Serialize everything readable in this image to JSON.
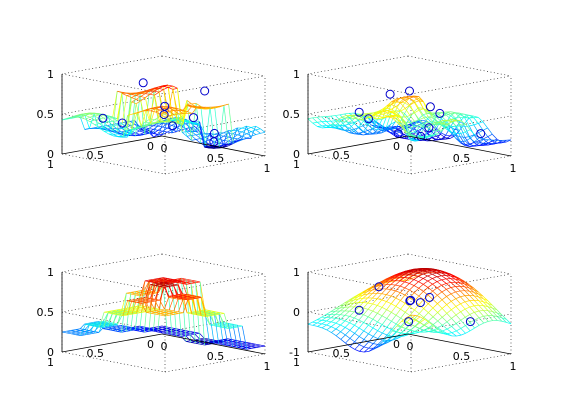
{
  "chart_data": [
    {
      "type": "surface",
      "surface": "scattered-nearest",
      "xticks": [
        "0",
        "0.5",
        "1"
      ],
      "yticks": [
        "0",
        "0.5",
        "1"
      ],
      "zticks": [
        "0",
        "0.5",
        "1"
      ],
      "zlim": [
        0,
        1
      ],
      "points": [
        {
          "x": 0.2,
          "y": 0.1,
          "z": 0.2
        },
        {
          "x": 0.5,
          "y": 0.2,
          "z": 0.4
        },
        {
          "x": 0.8,
          "y": 0.3,
          "z": 0.3
        },
        {
          "x": 0.1,
          "y": 0.5,
          "z": 0.3
        },
        {
          "x": 0.4,
          "y": 0.6,
          "z": 0.9
        },
        {
          "x": 0.7,
          "y": 0.7,
          "z": 0.6
        },
        {
          "x": 0.9,
          "y": 0.9,
          "z": 0.8
        },
        {
          "x": 0.3,
          "y": 0.9,
          "z": 0.5
        },
        {
          "x": 0.6,
          "y": 0.1,
          "z": 0.1
        },
        {
          "x": 0.9,
          "y": 0.5,
          "z": 0.9
        }
      ]
    },
    {
      "type": "surface",
      "surface": "scattered-peaks",
      "xticks": [
        "0",
        "0.5",
        "1"
      ],
      "yticks": [
        "0",
        "0.5",
        "1"
      ],
      "zticks": [
        "0",
        "0.5",
        "1"
      ],
      "zlim": [
        0,
        1
      ],
      "points": [
        {
          "x": 0.1,
          "y": 0.2,
          "z": 0.1
        },
        {
          "x": 0.3,
          "y": 0.1,
          "z": 0.2
        },
        {
          "x": 0.6,
          "y": 0.3,
          "z": 0.5
        },
        {
          "x": 0.9,
          "y": 0.2,
          "z": 0.3
        },
        {
          "x": 0.2,
          "y": 0.6,
          "z": 0.4
        },
        {
          "x": 0.5,
          "y": 0.5,
          "z": 0.8
        },
        {
          "x": 0.8,
          "y": 0.6,
          "z": 0.7
        },
        {
          "x": 0.4,
          "y": 0.9,
          "z": 0.6
        },
        {
          "x": 0.7,
          "y": 0.9,
          "z": 0.9
        },
        {
          "x": 0.9,
          "y": 0.8,
          "z": 0.4
        }
      ]
    },
    {
      "type": "surface",
      "surface": "piecewise-step",
      "xticks": [
        "0",
        "0.5",
        "1"
      ],
      "yticks": [
        "0",
        "0.5",
        "1"
      ],
      "zticks": [
        "0",
        "0.5",
        "1"
      ],
      "zlim": [
        0,
        1
      ],
      "points": []
    },
    {
      "type": "surface",
      "surface": "smooth-interpolant",
      "xticks": [
        "0",
        "0.5",
        "1"
      ],
      "yticks": [
        "0",
        "0.5",
        "1"
      ],
      "zticks": [
        "-1",
        "0",
        "1"
      ],
      "zlim": [
        -1,
        1
      ],
      "points": [
        {
          "x": 0.2,
          "y": 0.2,
          "z": -0.5
        },
        {
          "x": 0.5,
          "y": 0.3,
          "z": 0.3
        },
        {
          "x": 0.8,
          "y": 0.2,
          "z": -0.2
        },
        {
          "x": 0.3,
          "y": 0.6,
          "z": 0.6
        },
        {
          "x": 0.6,
          "y": 0.6,
          "z": 0.4
        },
        {
          "x": 0.8,
          "y": 0.7,
          "z": 0.5
        },
        {
          "x": 0.4,
          "y": 0.9,
          "z": 0.2
        },
        {
          "x": 0.9,
          "y": 0.9,
          "z": 0.7
        }
      ]
    }
  ]
}
